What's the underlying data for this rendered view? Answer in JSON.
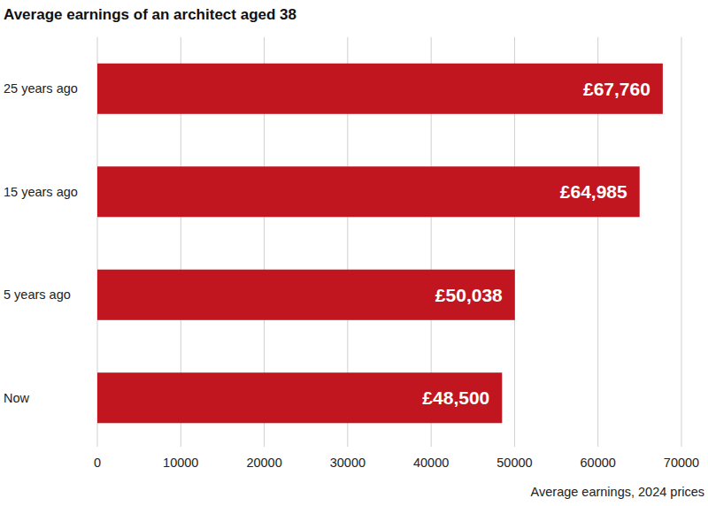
{
  "chart_data": {
    "type": "bar",
    "title": "Average earnings of an architect aged 38",
    "orientation": "horizontal",
    "categories": [
      "25 years ago",
      "15 years ago",
      "5 years ago",
      "Now"
    ],
    "values": [
      67760,
      64985,
      50038,
      48500
    ],
    "value_labels": [
      "£67,760",
      "£64,985",
      "£50,038",
      "£48,500"
    ],
    "data_labels": true,
    "color": "#c1161f",
    "xlabel": "Average earnings, 2024 prices",
    "xlim": [
      0,
      70000
    ],
    "xticks": [
      0,
      10000,
      20000,
      30000,
      40000,
      50000,
      60000,
      70000
    ],
    "grid": true
  }
}
